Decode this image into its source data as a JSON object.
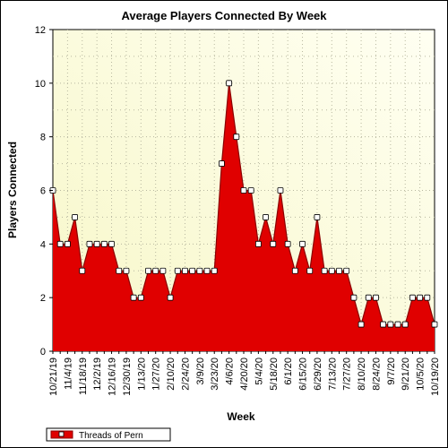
{
  "chart_data": {
    "type": "area",
    "title": "Average Players Connected By Week",
    "xlabel": "Week",
    "ylabel": "Players Connected",
    "ylim": [
      0,
      12
    ],
    "y_ticks": [
      "0",
      "2",
      "4",
      "6",
      "8",
      "10",
      "12"
    ],
    "grid": "dotted",
    "legend_position": "bottom-left",
    "x": [
      "10/21/19",
      "10/28/19",
      "11/4/19",
      "11/11/19",
      "11/18/19",
      "11/25/19",
      "12/2/19",
      "12/9/19",
      "12/16/19",
      "12/23/19",
      "12/30/19",
      "1/6/20",
      "1/13/20",
      "1/20/20",
      "1/27/20",
      "2/3/20",
      "2/10/20",
      "2/17/20",
      "2/24/20",
      "3/2/20",
      "3/9/20",
      "3/16/20",
      "3/23/20",
      "3/30/20",
      "4/6/20",
      "4/13/20",
      "4/20/20",
      "4/27/20",
      "5/4/20",
      "5/11/20",
      "5/18/20",
      "5/25/20",
      "6/1/20",
      "6/8/20",
      "6/15/20",
      "6/22/20",
      "6/29/20",
      "7/6/20",
      "7/13/20",
      "7/20/20",
      "7/27/20",
      "8/3/20",
      "8/10/20",
      "8/17/20",
      "8/24/20",
      "8/31/20",
      "9/7/20",
      "9/14/20",
      "9/21/20",
      "9/28/20",
      "10/5/20",
      "10/12/20",
      "10/19/20"
    ],
    "x_tick_labels": [
      "10/21/19",
      "11/4/19",
      "11/18/19",
      "12/2/19",
      "12/16/19",
      "12/30/19",
      "1/13/20",
      "1/27/20",
      "2/10/20",
      "2/24/20",
      "3/9/20",
      "3/23/20",
      "4/6/20",
      "4/20/20",
      "5/4/20",
      "5/18/20",
      "6/1/20",
      "6/15/20",
      "6/29/20",
      "7/13/20",
      "7/27/20",
      "8/10/20",
      "8/24/20",
      "9/7/20",
      "9/21/20",
      "10/5/20",
      "10/19/20"
    ],
    "series": [
      {
        "name": "Threads of Pern",
        "values": [
          6,
          4,
          4,
          5,
          3,
          4,
          4,
          4,
          4,
          3,
          3,
          2,
          2,
          3,
          3,
          3,
          2,
          3,
          3,
          3,
          3,
          3,
          3,
          7,
          10,
          8,
          6,
          6,
          4,
          5,
          4,
          6,
          4,
          3,
          4,
          3,
          5,
          3,
          3,
          3,
          3,
          2,
          1,
          2,
          2,
          1,
          1,
          1,
          1,
          2,
          2,
          2,
          1
        ]
      }
    ],
    "colors": {
      "fill": "#e00000",
      "line": "#8b0000",
      "plot_background_light": "#fffff0",
      "plot_background_dark": "#f7f7c8",
      "marker_fill": "#ffffff",
      "grid": "#b8b8a0"
    }
  }
}
